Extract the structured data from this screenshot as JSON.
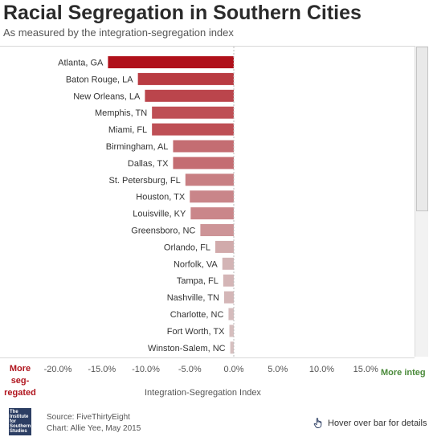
{
  "title": "Racial Segregation in Southern Cities",
  "subtitle": "As measured by the integration-segregation index",
  "labels": {
    "more_segregated": "More seg- regated",
    "more_integrated": "More integ",
    "axis_title": "Integration-Segregation Index",
    "hover_hint": "Hover over bar for details"
  },
  "footer": {
    "source": "Source: FiveThirtyEight",
    "chart_credit": "Chart: Allie Yee, May 2015",
    "logo_lines": [
      "The",
      "Institute",
      "for",
      "Southern",
      "Studies"
    ]
  },
  "icons": {
    "hover": "pointing-hand-icon",
    "scroll": "scrollbar"
  },
  "colors": {
    "most_segregated": "#b0101a",
    "least_segregated": "#d7c4c4",
    "integrated_text": "#4a8a3a"
  },
  "chart_data": {
    "type": "bar",
    "orientation": "horizontal",
    "xlabel": "Integration-Segregation Index",
    "xlim": [
      -0.21,
      0.165
    ],
    "x_ticks": [
      -0.2,
      -0.15,
      -0.1,
      -0.05,
      0.0,
      0.05,
      0.1,
      0.15
    ],
    "x_tick_labels": [
      "-20.0%",
      "-15.0%",
      "-10.0%",
      "-5.0%",
      "0.0%",
      "5.0%",
      "10.0%",
      "15.0%"
    ],
    "categories": [
      "Atlanta, GA",
      "Baton Rouge, LA",
      "New Orleans, LA",
      "Memphis, TN",
      "Miami, FL",
      "Birmingham, AL",
      "Dallas, TX",
      "St. Petersburg, FL",
      "Houston, TX",
      "Louisville, KY",
      "Greensboro, NC",
      "Orlando, FL",
      "Norfolk, VA",
      "Tampa, FL",
      "Nashville, TN",
      "Charlotte, NC",
      "Fort Worth, TX",
      "Winston-Salem, NC"
    ],
    "values": [
      -0.143,
      -0.109,
      -0.101,
      -0.093,
      -0.093,
      -0.069,
      -0.069,
      -0.055,
      -0.05,
      -0.049,
      -0.038,
      -0.021,
      -0.013,
      -0.012,
      -0.011,
      -0.006,
      -0.005,
      -0.004
    ]
  }
}
